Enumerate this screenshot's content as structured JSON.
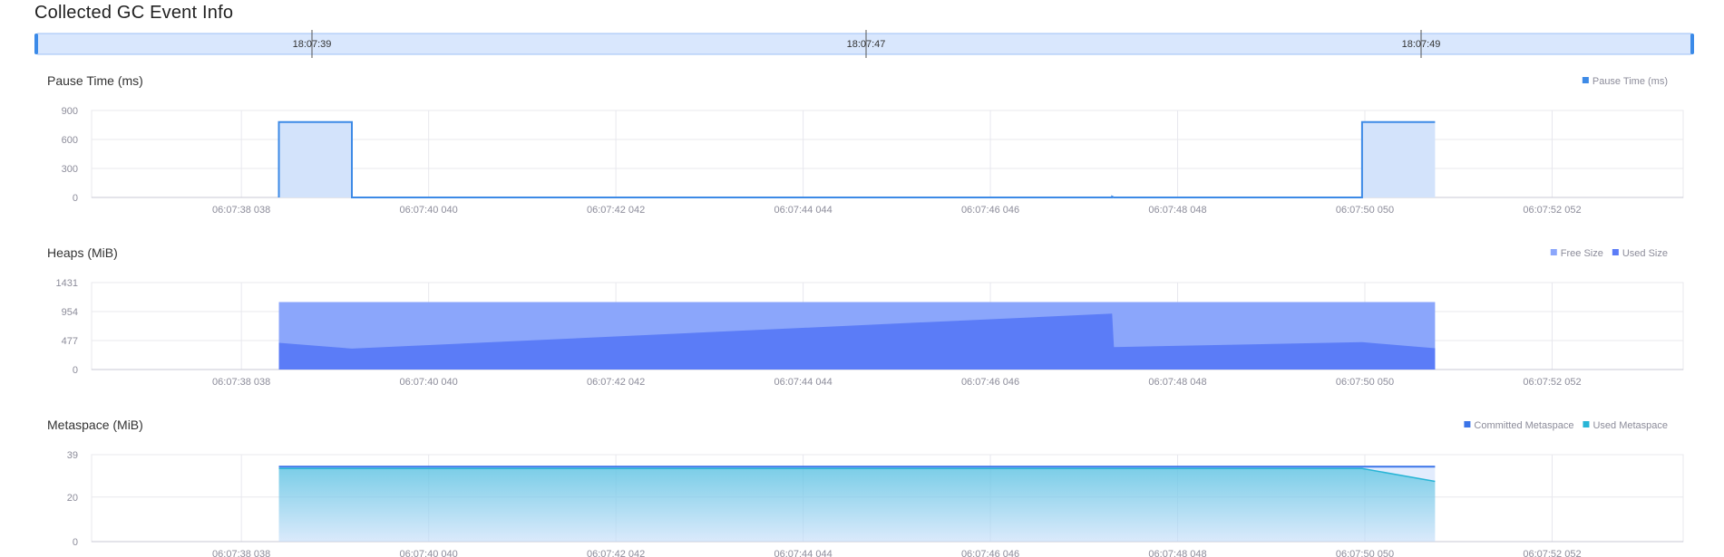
{
  "page": {
    "title": "Collected GC Event Info"
  },
  "timeline": {
    "labels": [
      "18:07:39",
      "18:07:47",
      "18:07:49"
    ]
  },
  "colors": {
    "pause_line": "#3d8ae6",
    "pause_fill": "#d3e3fb",
    "heap_free": "#8ba6fb",
    "heap_used": "#5b7cf7",
    "meta_committed": "#3b74e8",
    "meta_used": "#28b5d6",
    "grid": "#e8e8ee",
    "axis_text": "#8c8c9a",
    "timeline_fill": "#d9e7fd",
    "timeline_border": "#9ec2f6",
    "handle": "#3b8ae8"
  },
  "x_ticks": [
    "06:07:38 038",
    "06:07:40 040",
    "06:07:42 042",
    "06:07:44 044",
    "06:07:46 046",
    "06:07:48 048",
    "06:07:50 050",
    "06:07:52 052"
  ],
  "chart_data": [
    {
      "id": "pause",
      "type": "area",
      "title": "Pause Time (ms)",
      "legend_position": "top-right",
      "grid": true,
      "ylim": [
        0,
        900
      ],
      "yticks": [
        0,
        300,
        600,
        900
      ],
      "xlim": [
        36.4,
        53.4
      ],
      "series": [
        {
          "name": "Pause Time (ms)",
          "color_key": "pause_line",
          "fill_key": "pause_fill",
          "step": true,
          "points": [
            [
              38.4,
              0
            ],
            [
              38.4,
              780
            ],
            [
              39.18,
              780
            ],
            [
              39.18,
              0
            ],
            [
              47.3,
              0
            ],
            [
              47.3,
              8
            ],
            [
              47.32,
              0
            ],
            [
              49.97,
              0
            ],
            [
              49.97,
              780
            ],
            [
              50.75,
              780
            ]
          ]
        }
      ]
    },
    {
      "id": "heaps",
      "type": "area",
      "title": "Heaps (MiB)",
      "legend_position": "top-right",
      "grid": true,
      "ylim": [
        0,
        1431
      ],
      "yticks": [
        0,
        477,
        954,
        1431
      ],
      "xlim": [
        36.4,
        53.4
      ],
      "series": [
        {
          "name": "Free Size",
          "color_key": "heap_free",
          "points": [
            [
              38.4,
              1110
            ],
            [
              50.75,
              1110
            ]
          ]
        },
        {
          "name": "Used Size",
          "color_key": "heap_used",
          "points": [
            [
              38.4,
              440
            ],
            [
              39.18,
              345
            ],
            [
              47.3,
              920
            ],
            [
              47.32,
              370
            ],
            [
              49.97,
              450
            ],
            [
              50.75,
              350
            ]
          ]
        }
      ]
    },
    {
      "id": "metaspace",
      "type": "area",
      "title": "Metaspace (MiB)",
      "legend_position": "top-right",
      "grid": true,
      "ylim": [
        0,
        39
      ],
      "yticks": [
        0,
        20,
        39
      ],
      "xlim": [
        36.4,
        53.4
      ],
      "series": [
        {
          "name": "Committed Metaspace",
          "color_key": "meta_committed",
          "points": [
            [
              38.4,
              33.6
            ],
            [
              50.75,
              33.6
            ]
          ]
        },
        {
          "name": "Used Metaspace",
          "color_key": "meta_used",
          "points": [
            [
              38.4,
              32.8
            ],
            [
              49.97,
              32.8
            ],
            [
              50.75,
              27.0
            ]
          ]
        }
      ]
    }
  ]
}
